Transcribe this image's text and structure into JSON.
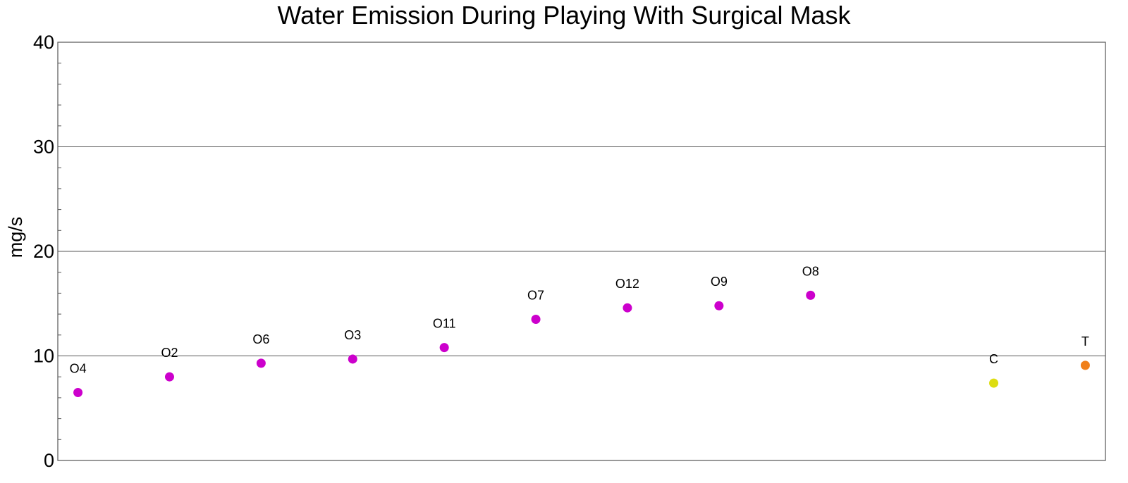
{
  "chart_data": {
    "type": "scatter",
    "title": "Water Emission During Playing With Surgical Mask",
    "ylabel": "mg/s",
    "xlabel": "",
    "ylim": [
      0,
      40
    ],
    "yticks": [
      0,
      10,
      20,
      30,
      40
    ],
    "grid": "horizontal at 10, 20, 30",
    "points": [
      {
        "label": "O4",
        "x": 1,
        "y": 6.5,
        "color": "#CC00CC"
      },
      {
        "label": "O2",
        "x": 2,
        "y": 8.0,
        "color": "#CC00CC"
      },
      {
        "label": "O6",
        "x": 3,
        "y": 9.3,
        "color": "#CC00CC"
      },
      {
        "label": "O3",
        "x": 4,
        "y": 9.7,
        "color": "#CC00CC"
      },
      {
        "label": "O11",
        "x": 5,
        "y": 10.8,
        "color": "#CC00CC"
      },
      {
        "label": "O7",
        "x": 6,
        "y": 13.5,
        "color": "#CC00CC"
      },
      {
        "label": "O12",
        "x": 7,
        "y": 14.6,
        "color": "#CC00CC"
      },
      {
        "label": "O9",
        "x": 8,
        "y": 14.8,
        "color": "#CC00CC"
      },
      {
        "label": "O8",
        "x": 9,
        "y": 15.8,
        "color": "#CC00CC"
      },
      {
        "label": "C",
        "x": 11,
        "y": 7.4,
        "color": "#DDDD11"
      },
      {
        "label": "T",
        "x": 12,
        "y": 9.1,
        "color": "#F07F1A"
      }
    ],
    "xlim": [
      0.78,
      12.22
    ]
  }
}
